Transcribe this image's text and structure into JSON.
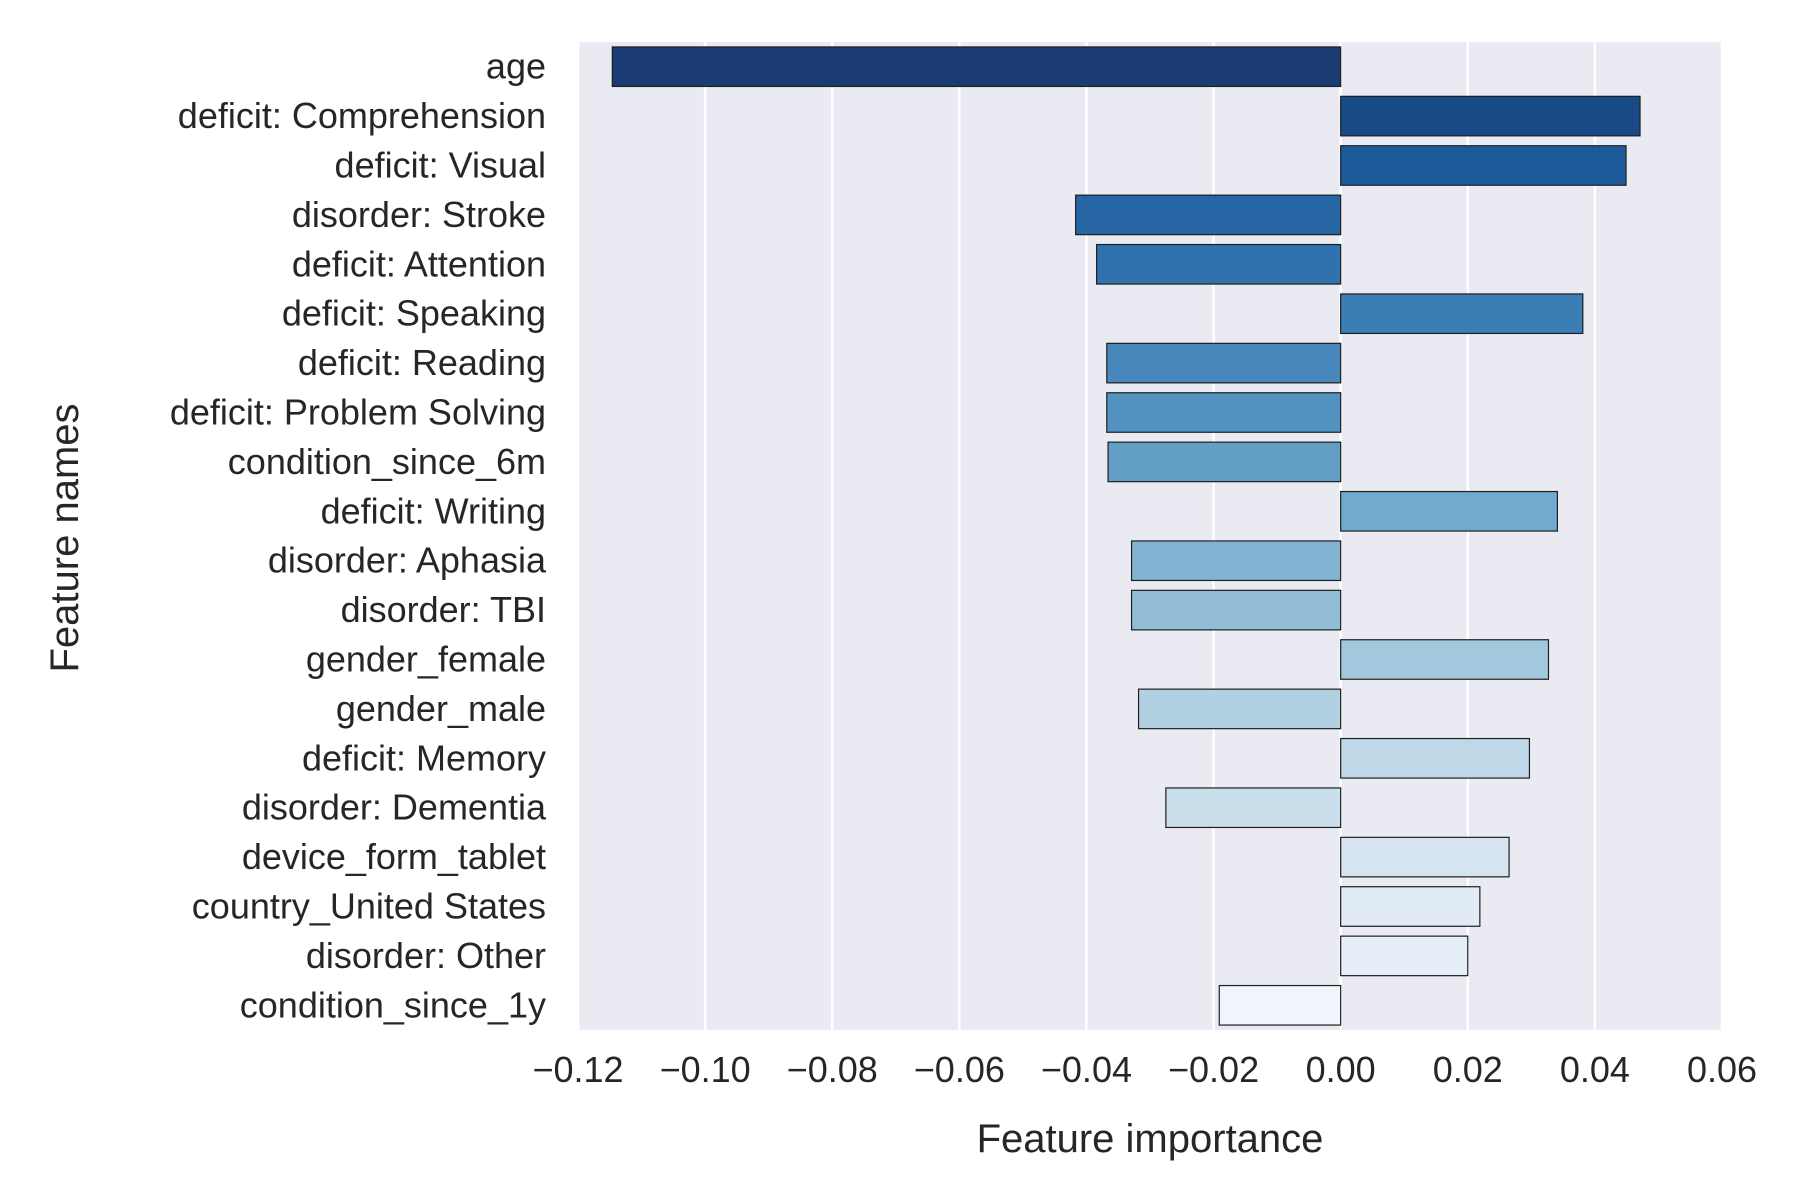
{
  "chart_data": {
    "type": "bar",
    "orientation": "horizontal",
    "title": "",
    "xlabel": "Feature importance",
    "ylabel": "Feature names",
    "xlim": [
      -0.12,
      0.06
    ],
    "xticks": [
      -0.12,
      -0.1,
      -0.08,
      -0.06,
      -0.04,
      -0.02,
      0.0,
      0.02,
      0.04,
      0.06
    ],
    "xtick_labels": [
      "−0.12",
      "−0.10",
      "−0.08",
      "−0.06",
      "−0.04",
      "−0.02",
      "0.00",
      "0.02",
      "0.04",
      "0.06"
    ],
    "grid": true,
    "background": "#eaeaf2",
    "palette": "Blues (dark to light)",
    "colors": [
      "#1a3c72",
      "#174a86",
      "#1d5a9b",
      "#2766a4",
      "#2f72ae",
      "#3b7db5",
      "#4787bb",
      "#5393c2",
      "#639ec6",
      "#72a9cf",
      "#83b3d2",
      "#93bdd6",
      "#a3c8dd",
      "#b1d1e2",
      "#bed8e8",
      "#cbdeec",
      "#d5e4f0",
      "#e0ebf6",
      "#e6eff8",
      "#eff5fb"
    ],
    "categories": [
      "age",
      "deficit: Comprehension",
      "deficit: Visual",
      "disorder: Stroke",
      "deficit: Attention",
      "deficit: Speaking",
      "deficit: Reading",
      "deficit: Problem Solving",
      "condition_since_6m",
      "deficit: Writing",
      "disorder: Aphasia",
      "disorder: TBI",
      "gender_female",
      "gender_male",
      "deficit: Memory",
      "disorder: Dementia",
      "device_form_tablet",
      "country_United States",
      "disorder: Other",
      "condition_since_1y"
    ],
    "values": [
      -0.1146,
      0.0471,
      0.0449,
      -0.0417,
      -0.0384,
      0.0381,
      -0.0368,
      -0.0368,
      -0.0366,
      0.0341,
      -0.0329,
      -0.0329,
      0.0327,
      -0.0318,
      0.0297,
      -0.0275,
      0.0265,
      0.0219,
      0.02,
      -0.0191
    ]
  }
}
